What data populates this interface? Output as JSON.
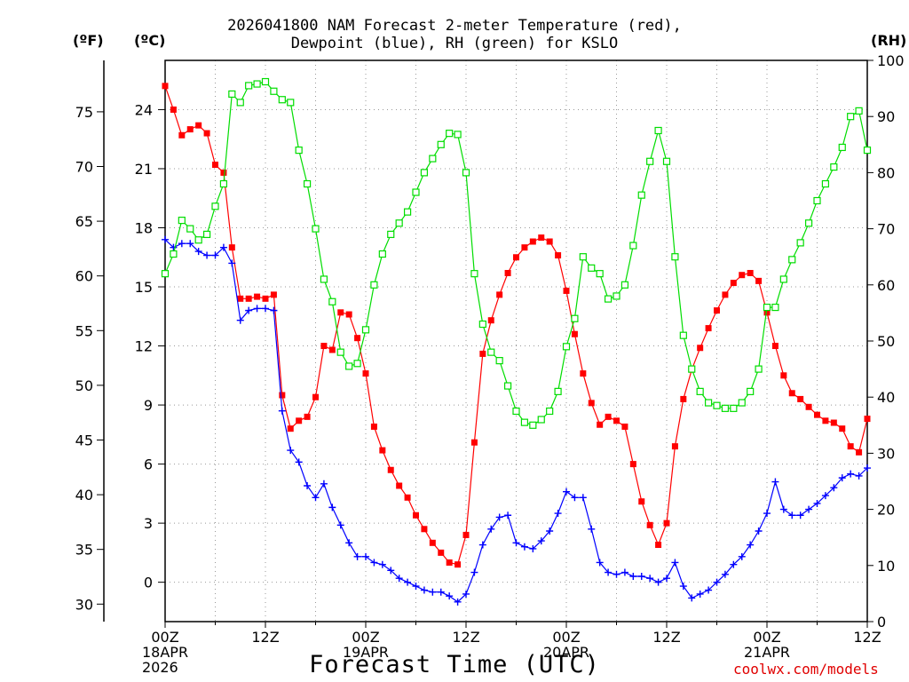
{
  "title_line1": "2026041800 NAM Forecast 2-meter Temperature (red),",
  "title_line2": "Dewpoint (blue), RH (green) for KSLO",
  "unit_f": "(ºF)",
  "unit_c": "(ºC)",
  "unit_rh": "(RH)",
  "x_axis_title": "Forecast Time (UTC)",
  "credit": "coolwx.com/models",
  "colors": {
    "temperature": "#ff0000",
    "dewpoint": "#0000ff",
    "rh": "#00dd00",
    "grid": "#999999"
  },
  "chart_data": {
    "type": "line",
    "title": "2026041800 NAM Forecast 2-meter Temperature (red), Dewpoint (blue), RH (green) for KSLO",
    "xlabel": "Forecast Time (UTC)",
    "x_unit": "forecast hour",
    "x_range": [
      0,
      84
    ],
    "x_ticks": [
      {
        "hour": 0,
        "lines": [
          "00Z",
          "18APR",
          "2026"
        ]
      },
      {
        "hour": 12,
        "lines": [
          "12Z"
        ]
      },
      {
        "hour": 24,
        "lines": [
          "00Z",
          "19APR"
        ]
      },
      {
        "hour": 36,
        "lines": [
          "12Z"
        ]
      },
      {
        "hour": 48,
        "lines": [
          "00Z",
          "20APR"
        ]
      },
      {
        "hour": 60,
        "lines": [
          "12Z"
        ]
      },
      {
        "hour": 72,
        "lines": [
          "00Z",
          "21APR"
        ]
      },
      {
        "hour": 84,
        "lines": [
          "12Z"
        ]
      }
    ],
    "y_left_celsius": {
      "label": "(ºC)",
      "range": [
        -2,
        26.5
      ],
      "ticks": [
        0,
        3,
        6,
        9,
        12,
        15,
        18,
        21,
        24
      ]
    },
    "y_left_fahrenheit": {
      "label": "(ºF)",
      "ticks": [
        30,
        35,
        40,
        45,
        50,
        55,
        60,
        65,
        70,
        75
      ]
    },
    "y_right_rh": {
      "label": "(RH)",
      "range": [
        0,
        100
      ],
      "ticks": [
        0,
        10,
        20,
        30,
        40,
        50,
        60,
        70,
        80,
        90,
        100
      ]
    },
    "grid": true,
    "series": [
      {
        "key": "temperature",
        "axis": "celsius",
        "marker": "square",
        "x": [
          0,
          1,
          2,
          3,
          4,
          5,
          6,
          7,
          8,
          9,
          10,
          11,
          12,
          13,
          14,
          15,
          16,
          17,
          18,
          19,
          20,
          21,
          22,
          23,
          24,
          25,
          26,
          27,
          28,
          29,
          30,
          31,
          32,
          33,
          34,
          35,
          36,
          37,
          38,
          39,
          40,
          41,
          42,
          43,
          44,
          45,
          46,
          47,
          48,
          49,
          50,
          51,
          52,
          53,
          54,
          55,
          56,
          57,
          58,
          59,
          60,
          61,
          62,
          63,
          64,
          65,
          66,
          67,
          68,
          69,
          70,
          71,
          72,
          73,
          74,
          75,
          76,
          77,
          78,
          79,
          80,
          81,
          82,
          83,
          84
        ],
        "values": [
          25.2,
          24.0,
          22.7,
          23.0,
          23.2,
          22.8,
          21.2,
          20.8,
          17.0,
          14.4,
          14.4,
          14.5,
          14.4,
          14.6,
          9.5,
          7.8,
          8.2,
          8.4,
          9.4,
          12.0,
          11.8,
          13.7,
          13.6,
          12.4,
          10.6,
          7.9,
          6.7,
          5.7,
          4.9,
          4.3,
          3.4,
          2.7,
          2.0,
          1.5,
          1.0,
          0.9,
          2.4,
          7.1,
          11.6,
          13.3,
          14.6,
          15.7,
          16.5,
          17.0,
          17.3,
          17.5,
          17.3,
          16.6,
          14.8,
          12.6,
          10.6,
          9.1,
          8.0,
          8.4,
          8.2,
          7.9,
          6.0,
          4.1,
          2.9,
          1.9,
          3.0,
          6.9,
          9.3,
          10.8,
          11.9,
          12.9,
          13.8,
          14.6,
          15.2,
          15.6,
          15.7,
          15.3,
          13.7,
          12.0,
          10.5,
          9.6,
          9.3,
          8.9,
          8.5,
          8.2,
          8.1,
          7.8,
          6.9,
          6.6,
          8.3
        ]
      },
      {
        "key": "dewpoint",
        "axis": "celsius",
        "marker": "plus",
        "x": [
          0,
          1,
          2,
          3,
          4,
          5,
          6,
          7,
          8,
          9,
          10,
          11,
          12,
          13,
          14,
          15,
          16,
          17,
          18,
          19,
          20,
          21,
          22,
          23,
          24,
          25,
          26,
          27,
          28,
          29,
          30,
          31,
          32,
          33,
          34,
          35,
          36,
          37,
          38,
          39,
          40,
          41,
          42,
          43,
          44,
          45,
          46,
          47,
          48,
          49,
          50,
          51,
          52,
          53,
          54,
          55,
          56,
          57,
          58,
          59,
          60,
          61,
          62,
          63,
          64,
          65,
          66,
          67,
          68,
          69,
          70,
          71,
          72,
          73,
          74,
          75,
          76,
          77,
          78,
          79,
          80,
          81,
          82,
          83,
          84
        ],
        "values": [
          17.4,
          17.0,
          17.2,
          17.2,
          16.8,
          16.6,
          16.6,
          17.0,
          16.2,
          13.3,
          13.8,
          13.9,
          13.9,
          13.8,
          8.7,
          6.7,
          6.1,
          4.9,
          4.3,
          5.0,
          3.8,
          2.9,
          2.0,
          1.3,
          1.3,
          1.0,
          0.9,
          0.6,
          0.2,
          0.0,
          -0.2,
          -0.4,
          -0.5,
          -0.5,
          -0.7,
          -1.0,
          -0.6,
          0.5,
          1.9,
          2.7,
          3.3,
          3.4,
          2.0,
          1.8,
          1.7,
          2.1,
          2.6,
          3.5,
          4.6,
          4.3,
          4.3,
          2.7,
          1.0,
          0.5,
          0.4,
          0.5,
          0.3,
          0.3,
          0.2,
          0.0,
          0.2,
          1.0,
          -0.2,
          -0.8,
          -0.6,
          -0.4,
          0.0,
          0.4,
          0.9,
          1.3,
          1.9,
          2.6,
          3.5,
          5.1,
          3.7,
          3.4,
          3.4,
          3.7,
          4.0,
          4.4,
          4.8,
          5.3,
          5.5,
          5.4,
          5.8
        ]
      },
      {
        "key": "rh",
        "axis": "rh",
        "marker": "open-square",
        "x": [
          0,
          1,
          2,
          3,
          4,
          5,
          6,
          7,
          8,
          9,
          10,
          11,
          12,
          13,
          14,
          15,
          16,
          17,
          18,
          19,
          20,
          21,
          22,
          23,
          24,
          25,
          26,
          27,
          28,
          29,
          30,
          31,
          32,
          33,
          34,
          35,
          36,
          37,
          38,
          39,
          40,
          41,
          42,
          43,
          44,
          45,
          46,
          47,
          48,
          49,
          50,
          51,
          52,
          53,
          54,
          55,
          56,
          57,
          58,
          59,
          60,
          61,
          62,
          63,
          64,
          65,
          66,
          67,
          68,
          69,
          70,
          71,
          72,
          73,
          74,
          75,
          76,
          77,
          78,
          79,
          80,
          81,
          82,
          83,
          84
        ],
        "values": [
          62,
          65.5,
          71.5,
          70,
          68,
          69,
          74,
          78,
          94,
          92.5,
          95.5,
          95.8,
          96.2,
          94.5,
          93,
          92.5,
          84,
          78,
          70,
          61,
          57,
          48,
          45.5,
          46,
          52,
          60,
          65.5,
          69,
          71,
          73,
          76.5,
          80,
          82.5,
          85,
          87,
          86.8,
          80,
          62,
          53,
          48,
          46.5,
          42,
          37.5,
          35.5,
          35,
          36,
          37.5,
          41,
          49,
          54,
          65,
          63,
          62,
          57.5,
          58,
          60,
          67,
          76,
          82,
          87.5,
          82,
          65,
          51,
          45,
          41,
          39,
          38.5,
          38,
          38,
          39,
          41,
          45,
          56,
          56,
          61,
          64.5,
          67.5,
          71,
          75,
          78,
          81,
          84.5,
          90,
          91,
          84
        ]
      }
    ]
  }
}
